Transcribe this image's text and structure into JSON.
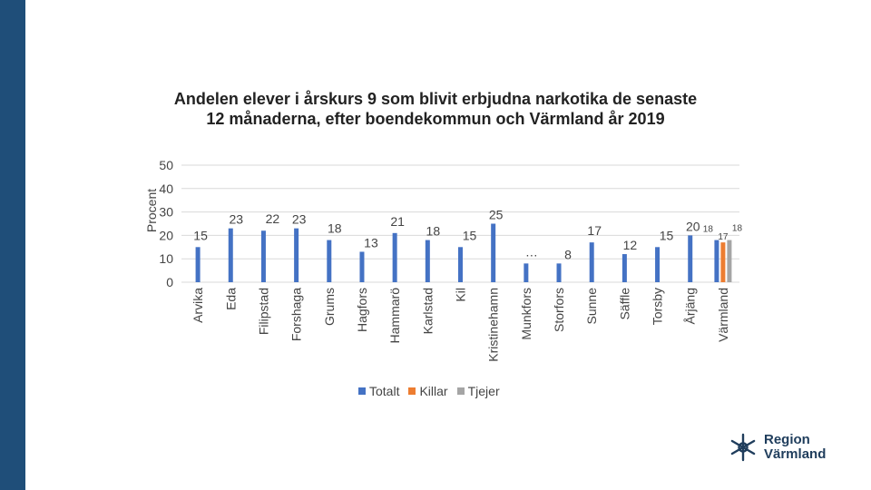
{
  "colors": {
    "sidebar": "#1f4e79",
    "totalt": "#4472c4",
    "killar": "#ed7d31",
    "tjejer": "#a5a5a5",
    "grid": "#d9d9d9",
    "text": "#444444",
    "logo": "#1f3d5c"
  },
  "chart_data": {
    "type": "bar",
    "title": "Andelen elever i årskurs 9 som blivit erbjudna narkotika de senaste 12 månaderna, efter boendekommun och Värmland år 2019",
    "ylabel": "Procent",
    "xlabel": "",
    "ylim": [
      0,
      50
    ],
    "yticks": [
      0,
      10,
      20,
      30,
      40,
      50
    ],
    "grid": true,
    "legend_position": "bottom",
    "categories": [
      "Arvika",
      "Eda",
      "Filipstad",
      "Forshaga",
      "Grums",
      "Hagfors",
      "Hammarö",
      "Karlstad",
      "Kil",
      "Kristinehamn",
      "Munkfors",
      "Storfors",
      "Sunne",
      "Säffle",
      "Torsby",
      "Årjäng",
      "Värmland"
    ],
    "series": [
      {
        "name": "Totalt",
        "values": [
          15,
          23,
          22,
          23,
          18,
          13,
          21,
          18,
          15,
          25,
          8,
          8,
          17,
          12,
          15,
          20,
          18
        ],
        "labels": [
          "15",
          "23",
          "22",
          "23",
          "18",
          "13",
          "21",
          "18",
          "15",
          "25",
          "…",
          "8",
          "17",
          "12",
          "15",
          "20",
          "18"
        ]
      },
      {
        "name": "Killar",
        "values": [
          null,
          null,
          null,
          null,
          null,
          null,
          null,
          null,
          null,
          null,
          null,
          null,
          null,
          null,
          null,
          null,
          17
        ],
        "labels": [
          "",
          "",
          "",
          "",
          "",
          "",
          "",
          "",
          "",
          "",
          "",
          "",
          "",
          "",
          "",
          "",
          "17"
        ]
      },
      {
        "name": "Tjejer",
        "values": [
          null,
          null,
          null,
          null,
          null,
          null,
          null,
          null,
          null,
          null,
          null,
          null,
          null,
          null,
          null,
          null,
          18
        ],
        "labels": [
          "",
          "",
          "",
          "",
          "",
          "",
          "",
          "",
          "",
          "",
          "",
          "",
          "",
          "",
          "",
          "",
          "18"
        ]
      }
    ]
  },
  "logo": {
    "line1": "Region",
    "line2": "Värmland"
  }
}
